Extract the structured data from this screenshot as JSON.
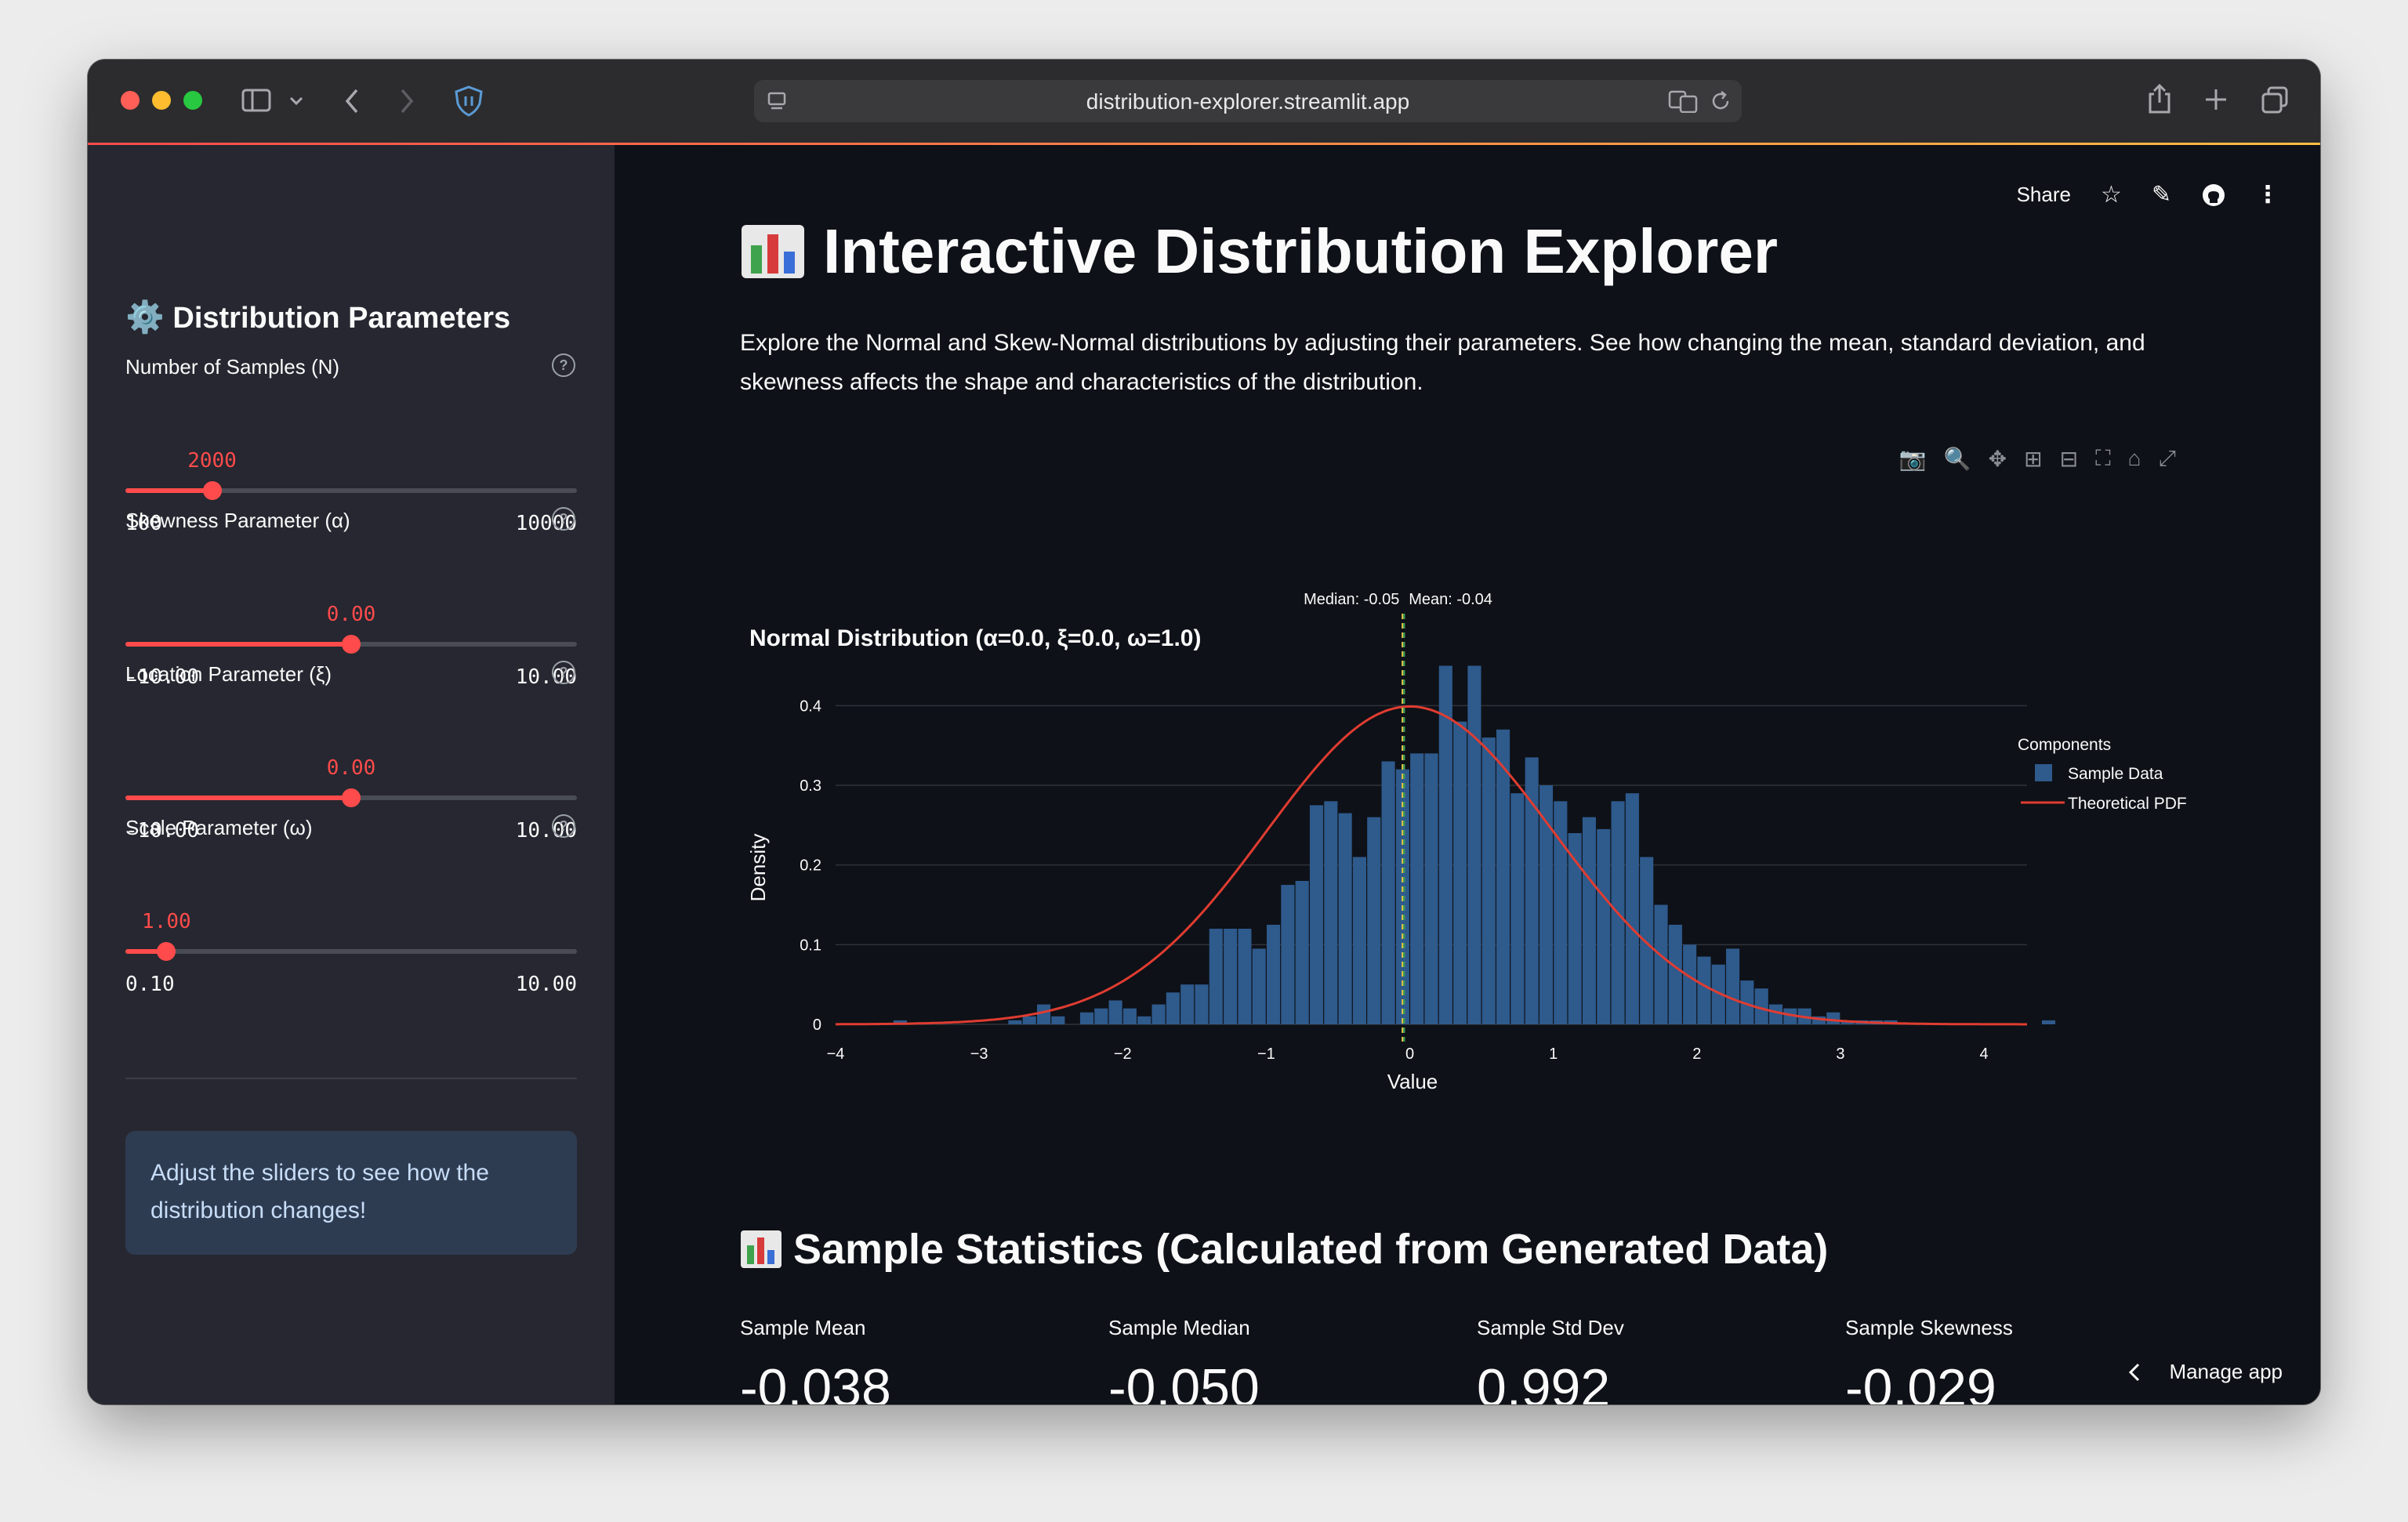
{
  "browser": {
    "url": "distribution-explorer.streamlit.app"
  },
  "sidebar": {
    "title": "Distribution Parameters",
    "sliders": [
      {
        "label": "Number of Samples (N)",
        "value_text": "2000",
        "value": 2000,
        "min_text": "100",
        "max_text": "10000",
        "min": 100,
        "max": 10000
      },
      {
        "label": "Skewness Parameter (α)",
        "value_text": "0.00",
        "value": 0,
        "min_text": "-10.00",
        "max_text": "10.00",
        "min": -10,
        "max": 10
      },
      {
        "label": "Location Parameter (ξ)",
        "value_text": "0.00",
        "value": 0,
        "min_text": "-10.00",
        "max_text": "10.00",
        "min": -10,
        "max": 10
      },
      {
        "label": "Scale Parameter (ω)",
        "value_text": "1.00",
        "value": 1,
        "min_text": "0.10",
        "max_text": "10.00",
        "min": 0.1,
        "max": 10
      }
    ],
    "info": "Adjust the sliders to see how the distribution changes!"
  },
  "header": {
    "share_label": "Share"
  },
  "main": {
    "title": "Interactive Distribution Explorer",
    "description": "Explore the Normal and Skew-Normal distributions by adjusting their parameters. See how changing the mean, standard deviation, and skewness affects the shape and characteristics of the distribution.",
    "stats_title": "Sample Statistics (Calculated from Generated Data)",
    "metrics": [
      {
        "label": "Sample Mean",
        "value": "-0.038"
      },
      {
        "label": "Sample Median",
        "value": "-0.050"
      },
      {
        "label": "Sample Std Dev",
        "value": "0.992"
      },
      {
        "label": "Sample Skewness",
        "value": "-0.029"
      }
    ],
    "manage_app": "Manage app"
  },
  "chart_data": {
    "type": "bar",
    "title": "Normal Distribution (α=0.0, ξ=0.0, ω=1.0)",
    "xlabel": "Value",
    "ylabel": "Density",
    "xlim": [
      -4,
      4.3
    ],
    "ylim": [
      0,
      0.48
    ],
    "xticks": [
      "−4",
      "−3",
      "−2",
      "−1",
      "0",
      "1",
      "2",
      "3",
      "4"
    ],
    "yticks": [
      "0",
      "0.1",
      "0.2",
      "0.3",
      "0.4"
    ],
    "legend_title": "Components",
    "legend_position": "top-right",
    "grid": true,
    "bin_width": 0.1,
    "bin_start": -3.6,
    "series": [
      {
        "name": "Sample Data",
        "kind": "histogram",
        "color": "#2e5a8c",
        "values": [
          0.005,
          0,
          0,
          0,
          0,
          0,
          0,
          0,
          0.005,
          0.01,
          0.025,
          0.01,
          0,
          0.015,
          0.02,
          0.03,
          0.02,
          0.01,
          0.025,
          0.04,
          0.05,
          0.05,
          0.12,
          0.12,
          0.12,
          0.095,
          0.125,
          0.175,
          0.18,
          0.275,
          0.28,
          0.265,
          0.21,
          0.26,
          0.33,
          0.32,
          0.34,
          0.34,
          0.45,
          0.38,
          0.45,
          0.36,
          0.37,
          0.29,
          0.335,
          0.3,
          0.28,
          0.24,
          0.26,
          0.245,
          0.28,
          0.29,
          0.21,
          0.15,
          0.125,
          0.1,
          0.085,
          0.075,
          0.095,
          0.055,
          0.045,
          0.025,
          0.02,
          0.02,
          0.01,
          0.015,
          0.005,
          0.005,
          0.005,
          0.005,
          0,
          0,
          0,
          0,
          0,
          0,
          0,
          0,
          0,
          0,
          0.005
        ]
      },
      {
        "name": "Theoretical PDF",
        "kind": "line",
        "color": "#e03c31"
      }
    ],
    "annotations": [
      {
        "text": "Median: -0.05",
        "x": -0.05,
        "color": "#e8c547"
      },
      {
        "text": "Mean: -0.04",
        "x": -0.04,
        "color": "#3f9a55"
      }
    ]
  }
}
